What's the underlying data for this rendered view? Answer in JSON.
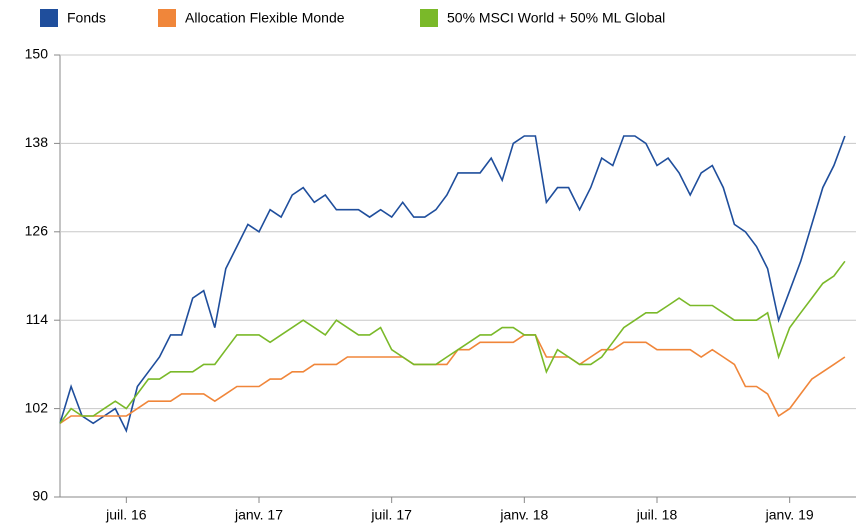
{
  "chart_data": {
    "type": "line",
    "categories": [
      null,
      null,
      null,
      null,
      null,
      null,
      "juil. 16",
      null,
      null,
      null,
      null,
      null,
      null,
      null,
      null,
      null,
      null,
      null,
      "janv. 17",
      null,
      null,
      null,
      null,
      null,
      null,
      null,
      null,
      null,
      null,
      null,
      "juil. 17",
      null,
      null,
      null,
      null,
      null,
      null,
      null,
      null,
      null,
      null,
      null,
      "janv. 18",
      null,
      null,
      null,
      null,
      null,
      null,
      null,
      null,
      null,
      null,
      null,
      "juil. 18",
      null,
      null,
      null,
      null,
      null,
      null,
      null,
      null,
      null,
      null,
      null,
      "janv. 19",
      null,
      null,
      null,
      null,
      null
    ],
    "series": [
      {
        "name": "Fonds",
        "color": "#1f4e9c",
        "values": [
          100,
          105,
          101,
          100,
          101,
          102,
          99,
          105,
          107,
          109,
          112,
          112,
          117,
          118,
          113,
          121,
          124,
          127,
          126,
          129,
          128,
          131,
          132,
          130,
          131,
          129,
          129,
          129,
          128,
          129,
          128,
          130,
          128,
          128,
          129,
          131,
          134,
          134,
          134,
          136,
          133,
          138,
          139,
          139,
          130,
          132,
          132,
          129,
          132,
          136,
          135,
          139,
          139,
          138,
          135,
          136,
          134,
          131,
          134,
          135,
          132,
          127,
          126,
          124,
          121,
          114,
          118,
          122,
          127,
          132,
          135,
          139
        ]
      },
      {
        "name": "Allocation Flexible Monde",
        "color": "#f0863a",
        "values": [
          100,
          101,
          101,
          101,
          101,
          101,
          101,
          102,
          103,
          103,
          103,
          104,
          104,
          104,
          103,
          104,
          105,
          105,
          105,
          106,
          106,
          107,
          107,
          108,
          108,
          108,
          109,
          109,
          109,
          109,
          109,
          109,
          108,
          108,
          108,
          108,
          110,
          110,
          111,
          111,
          111,
          111,
          112,
          112,
          109,
          109,
          109,
          108,
          109,
          110,
          110,
          111,
          111,
          111,
          110,
          110,
          110,
          110,
          109,
          110,
          109,
          108,
          105,
          105,
          104,
          101,
          102,
          104,
          106,
          107,
          108,
          109
        ]
      },
      {
        "name": "50% MSCI World + 50% ML Global",
        "color": "#7ab929",
        "values": [
          100,
          102,
          101,
          101,
          102,
          103,
          102,
          104,
          106,
          106,
          107,
          107,
          107,
          108,
          108,
          110,
          112,
          112,
          112,
          111,
          112,
          113,
          114,
          113,
          112,
          114,
          113,
          112,
          112,
          113,
          110,
          109,
          108,
          108,
          108,
          109,
          110,
          111,
          112,
          112,
          113,
          113,
          112,
          112,
          107,
          110,
          109,
          108,
          108,
          109,
          111,
          113,
          114,
          115,
          115,
          116,
          117,
          116,
          116,
          116,
          115,
          114,
          114,
          114,
          115,
          109,
          113,
          115,
          117,
          119,
          120,
          122
        ]
      }
    ],
    "ylim": [
      90,
      150
    ],
    "yticks": [
      90,
      102,
      114,
      126,
      138,
      150
    ],
    "grid": true
  }
}
